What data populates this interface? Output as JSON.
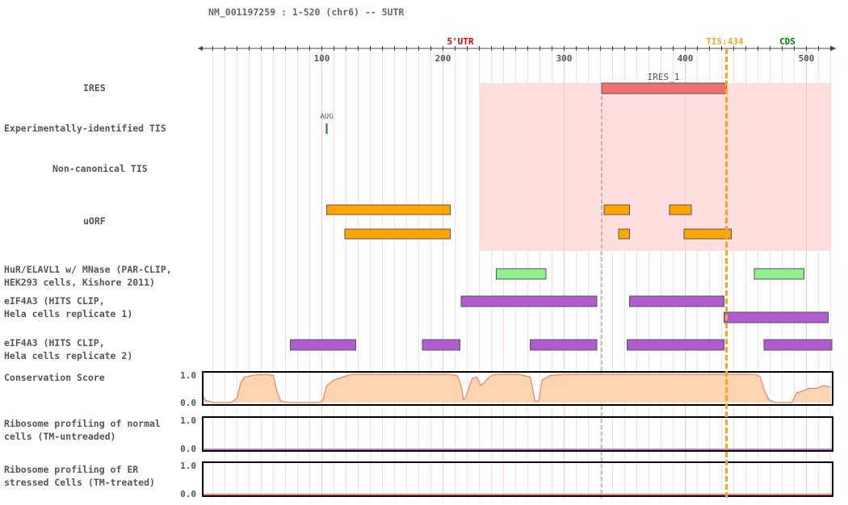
{
  "header": {
    "title": "NM_001197259 : 1-520 (chr6) -- 5UTR"
  },
  "axis": {
    "range": [
      1,
      520
    ],
    "ticks": [
      {
        "value": 100,
        "label": "100"
      },
      {
        "value": 200,
        "label": "200"
      },
      {
        "value": 300,
        "label": "300"
      },
      {
        "value": 400,
        "label": "400"
      },
      {
        "value": 500,
        "label": "500"
      }
    ]
  },
  "regions": {
    "utr5": {
      "label": "5'UTR",
      "color": "#dd0000",
      "start": 1,
      "end": 434
    },
    "tis": {
      "label": "TIS:434",
      "position": 434,
      "color": "#f5a623"
    },
    "cds": {
      "label": "CDS",
      "color": "#008000"
    },
    "highlight": {
      "start": 230,
      "end": 520,
      "color": "#ffdede"
    },
    "dashed_marker": 331
  },
  "tracks": {
    "ires": {
      "label": "IRES",
      "features": [
        {
          "name": "IRES_1",
          "start": 331,
          "end": 433,
          "color": "#f07070"
        }
      ]
    },
    "exp_tis": {
      "label": "Experimentally-identified TIS",
      "marks": [
        {
          "name": "AUG",
          "position": 104,
          "color": "#1a7a1a"
        }
      ]
    },
    "noncanonical_tis": {
      "label": "Non-canonical TIS",
      "marks": []
    },
    "uorf": {
      "label": "uORF",
      "color": "#ffa500",
      "rows": [
        [
          {
            "start": 104,
            "end": 205
          },
          {
            "start": 333,
            "end": 353
          },
          {
            "start": 387,
            "end": 404
          }
        ],
        [
          {
            "start": 119,
            "end": 205
          },
          {
            "start": 345,
            "end": 353
          },
          {
            "start": 399,
            "end": 437
          }
        ]
      ]
    },
    "hur": {
      "label": "HuR/ELAVL1 w/ MNase (PAR-CLIP,\nHEK293 cells, Kishore 2011)",
      "color": "#90ee90",
      "features": [
        {
          "start": 244,
          "end": 284
        },
        {
          "start": 457,
          "end": 497
        }
      ]
    },
    "eif4a3_r1": {
      "label": "eIF4A3 (HITS CLIP,\nHela cells replicate 1)",
      "color": "#b05cd0",
      "rows": [
        [
          {
            "start": 215,
            "end": 326
          },
          {
            "start": 354,
            "end": 431
          }
        ],
        [
          {
            "start": 432,
            "end": 517
          }
        ]
      ]
    },
    "eif4a3_r2": {
      "label": "eIF4A3 (HITS CLIP,\nHela cells replicate 2)",
      "color": "#b05cd0",
      "features": [
        {
          "start": 74,
          "end": 127
        },
        {
          "start": 183,
          "end": 213
        },
        {
          "start": 272,
          "end": 326
        },
        {
          "start": 352,
          "end": 431
        },
        {
          "start": 465,
          "end": 520
        }
      ]
    },
    "conservation": {
      "label": "Conservation Score",
      "y_labels": [
        "1.0",
        "0.0"
      ],
      "ylim": [
        0,
        1
      ],
      "fill": "#fdd5b0",
      "stroke": "#f08060",
      "points": [
        [
          1,
          0.3
        ],
        [
          4,
          0.08
        ],
        [
          10,
          0.0
        ],
        [
          25,
          0.0
        ],
        [
          30,
          0.15
        ],
        [
          33,
          0.7
        ],
        [
          36,
          0.9
        ],
        [
          45,
          0.98
        ],
        [
          55,
          1.0
        ],
        [
          60,
          0.95
        ],
        [
          63,
          0.4
        ],
        [
          66,
          0.05
        ],
        [
          72,
          0.0
        ],
        [
          98,
          0.0
        ],
        [
          101,
          0.1
        ],
        [
          104,
          0.6
        ],
        [
          110,
          0.8
        ],
        [
          117,
          0.9
        ],
        [
          125,
          1.0
        ],
        [
          150,
          1.0
        ],
        [
          180,
          1.0
        ],
        [
          205,
          1.0
        ],
        [
          212,
          0.95
        ],
        [
          215,
          0.6
        ],
        [
          217,
          0.1
        ],
        [
          219,
          0.2
        ],
        [
          224,
          0.85
        ],
        [
          228,
          0.9
        ],
        [
          231,
          0.6
        ],
        [
          234,
          0.7
        ],
        [
          238,
          0.9
        ],
        [
          243,
          1.0
        ],
        [
          263,
          1.0
        ],
        [
          272,
          0.9
        ],
        [
          274,
          0.5
        ],
        [
          276,
          0.05
        ],
        [
          279,
          0.05
        ],
        [
          282,
          0.8
        ],
        [
          288,
          0.95
        ],
        [
          300,
          1.0
        ],
        [
          350,
          1.0
        ],
        [
          400,
          1.0
        ],
        [
          440,
          1.0
        ],
        [
          458,
          1.0
        ],
        [
          462,
          0.9
        ],
        [
          465,
          0.45
        ],
        [
          469,
          0.1
        ],
        [
          474,
          0.0
        ],
        [
          488,
          0.0
        ],
        [
          492,
          0.35
        ],
        [
          497,
          0.4
        ],
        [
          502,
          0.5
        ],
        [
          508,
          0.5
        ],
        [
          514,
          0.6
        ],
        [
          520,
          0.55
        ]
      ]
    },
    "ribo_normal": {
      "label": "Ribosome profiling of normal\ncells (TM-untreaded)",
      "y_labels": [
        "1.0",
        "0.0"
      ],
      "line_color": "#9b59b6"
    },
    "ribo_er": {
      "label": "Ribosome profiling of ER\nstressed Cells (TM-treated)",
      "y_labels": [
        "1.0",
        "0.0"
      ],
      "line_color": "#e05a5a"
    }
  }
}
